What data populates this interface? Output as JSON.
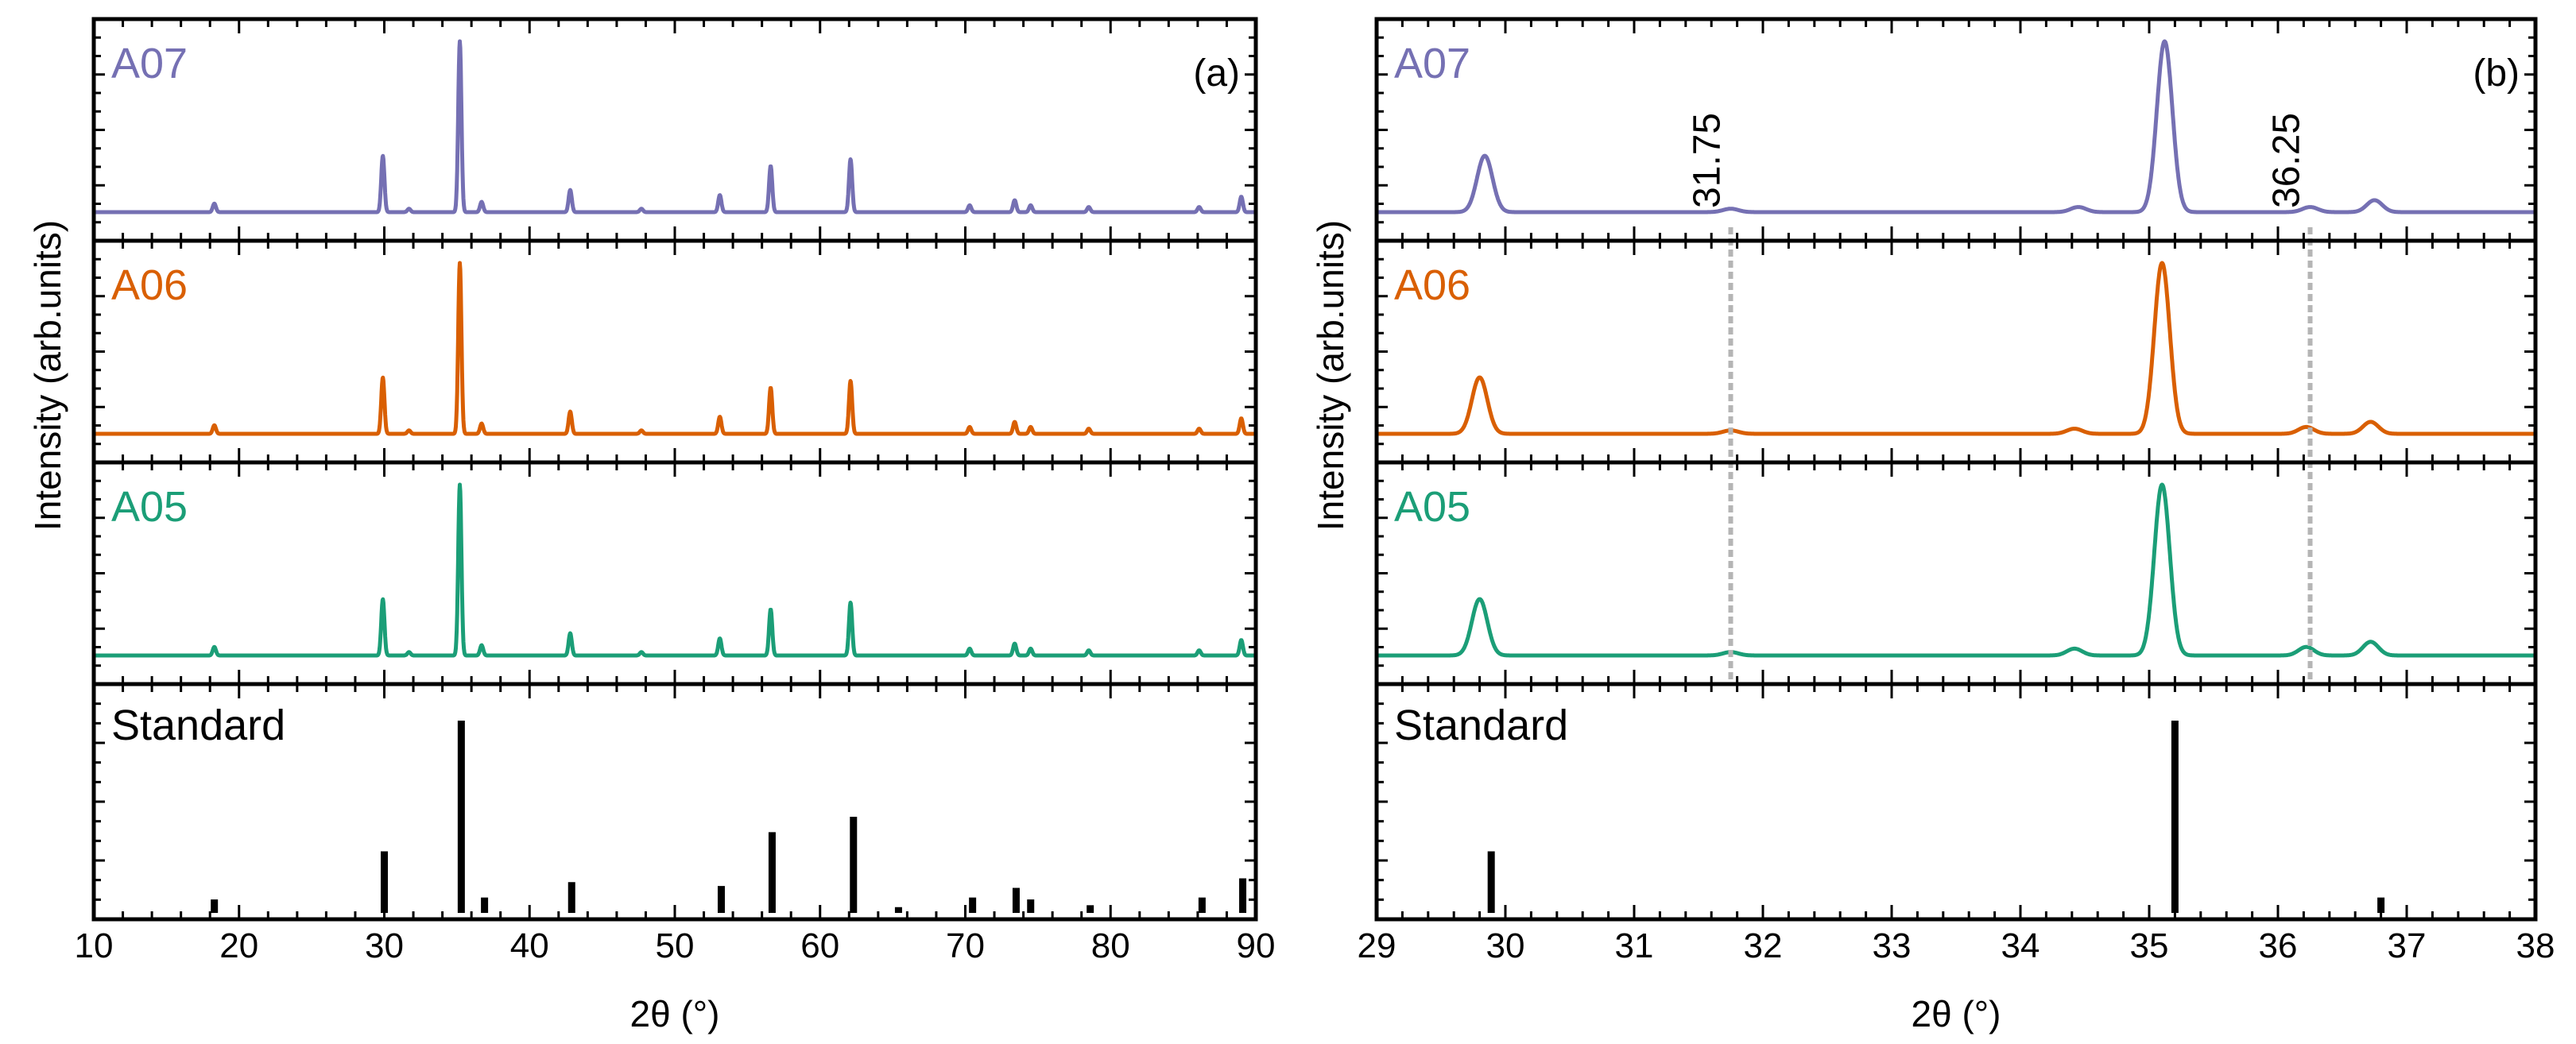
{
  "chart_data": [
    {
      "id": "a",
      "type": "line",
      "panel_label": "(a)",
      "xlabel": "2θ (°)",
      "ylabel": "Intensity (arb.units)",
      "xlim": [
        10,
        90
      ],
      "xticks": [
        10,
        20,
        30,
        40,
        50,
        60,
        70,
        80,
        90
      ],
      "series": [
        {
          "name": "A07",
          "color": "#7570b3",
          "peaks": [
            [
              18.3,
              0.05
            ],
            [
              29.9,
              0.33
            ],
            [
              31.7,
              0.02
            ],
            [
              35.2,
              1.0
            ],
            [
              36.7,
              0.06
            ],
            [
              42.8,
              0.13
            ],
            [
              47.7,
              0.02
            ],
            [
              53.1,
              0.1
            ],
            [
              56.6,
              0.27
            ],
            [
              62.1,
              0.31
            ],
            [
              70.3,
              0.04
            ],
            [
              73.4,
              0.07
            ],
            [
              74.5,
              0.04
            ],
            [
              78.5,
              0.03
            ],
            [
              86.1,
              0.03
            ],
            [
              89.0,
              0.09
            ]
          ]
        },
        {
          "name": "A06",
          "color": "#d95f02",
          "peaks": [
            [
              18.3,
              0.05
            ],
            [
              29.9,
              0.33
            ],
            [
              31.7,
              0.02
            ],
            [
              35.2,
              1.0
            ],
            [
              36.7,
              0.06
            ],
            [
              42.8,
              0.13
            ],
            [
              47.7,
              0.02
            ],
            [
              53.1,
              0.1
            ],
            [
              56.6,
              0.27
            ],
            [
              62.1,
              0.31
            ],
            [
              70.3,
              0.04
            ],
            [
              73.4,
              0.07
            ],
            [
              74.5,
              0.04
            ],
            [
              78.5,
              0.03
            ],
            [
              86.1,
              0.03
            ],
            [
              89.0,
              0.09
            ]
          ]
        },
        {
          "name": "A05",
          "color": "#1b9e77",
          "peaks": [
            [
              18.3,
              0.05
            ],
            [
              29.9,
              0.33
            ],
            [
              31.7,
              0.02
            ],
            [
              35.2,
              1.0
            ],
            [
              36.7,
              0.06
            ],
            [
              42.8,
              0.13
            ],
            [
              47.7,
              0.02
            ],
            [
              53.1,
              0.1
            ],
            [
              56.6,
              0.27
            ],
            [
              62.1,
              0.31
            ],
            [
              70.3,
              0.04
            ],
            [
              73.4,
              0.07
            ],
            [
              74.5,
              0.04
            ],
            [
              78.5,
              0.03
            ],
            [
              86.1,
              0.03
            ],
            [
              89.0,
              0.09
            ]
          ]
        }
      ],
      "standard": {
        "name": "Standard",
        "color": "#000000",
        "lines": [
          [
            18.3,
            0.07
          ],
          [
            30.0,
            0.32
          ],
          [
            35.3,
            1.0
          ],
          [
            36.9,
            0.08
          ],
          [
            42.9,
            0.16
          ],
          [
            53.2,
            0.14
          ],
          [
            56.7,
            0.42
          ],
          [
            62.3,
            0.5
          ],
          [
            65.4,
            0.03
          ],
          [
            70.5,
            0.08
          ],
          [
            73.5,
            0.13
          ],
          [
            74.5,
            0.07
          ],
          [
            78.6,
            0.04
          ],
          [
            86.3,
            0.08
          ],
          [
            89.1,
            0.18
          ]
        ]
      }
    },
    {
      "id": "b",
      "type": "line",
      "panel_label": "(b)",
      "xlabel": "2θ (°)",
      "ylabel": "Intensity (arb.units)",
      "xlim": [
        29,
        38
      ],
      "xticks": [
        29,
        30,
        31,
        32,
        33,
        34,
        35,
        36,
        37,
        38
      ],
      "guide_lines": [
        31.75,
        36.25
      ],
      "guide_labels": [
        "31.75",
        "36.25"
      ],
      "series": [
        {
          "name": "A07",
          "color": "#7570b3",
          "peaks": [
            [
              29.84,
              0.33
            ],
            [
              31.75,
              0.02
            ],
            [
              34.45,
              0.03
            ],
            [
              35.12,
              1.0
            ],
            [
              36.25,
              0.03
            ],
            [
              36.75,
              0.07
            ]
          ]
        },
        {
          "name": "A06",
          "color": "#d95f02",
          "peaks": [
            [
              29.8,
              0.33
            ],
            [
              31.75,
              0.02
            ],
            [
              34.42,
              0.03
            ],
            [
              35.1,
              1.0
            ],
            [
              36.22,
              0.04
            ],
            [
              36.72,
              0.07
            ]
          ]
        },
        {
          "name": "A05",
          "color": "#1b9e77",
          "peaks": [
            [
              29.8,
              0.33
            ],
            [
              31.75,
              0.02
            ],
            [
              34.42,
              0.04
            ],
            [
              35.1,
              1.0
            ],
            [
              36.22,
              0.05
            ],
            [
              36.72,
              0.08
            ]
          ]
        }
      ],
      "standard": {
        "name": "Standard",
        "color": "#000000",
        "lines": [
          [
            29.89,
            0.32
          ],
          [
            35.2,
            1.0
          ],
          [
            36.8,
            0.08
          ]
        ]
      }
    }
  ]
}
